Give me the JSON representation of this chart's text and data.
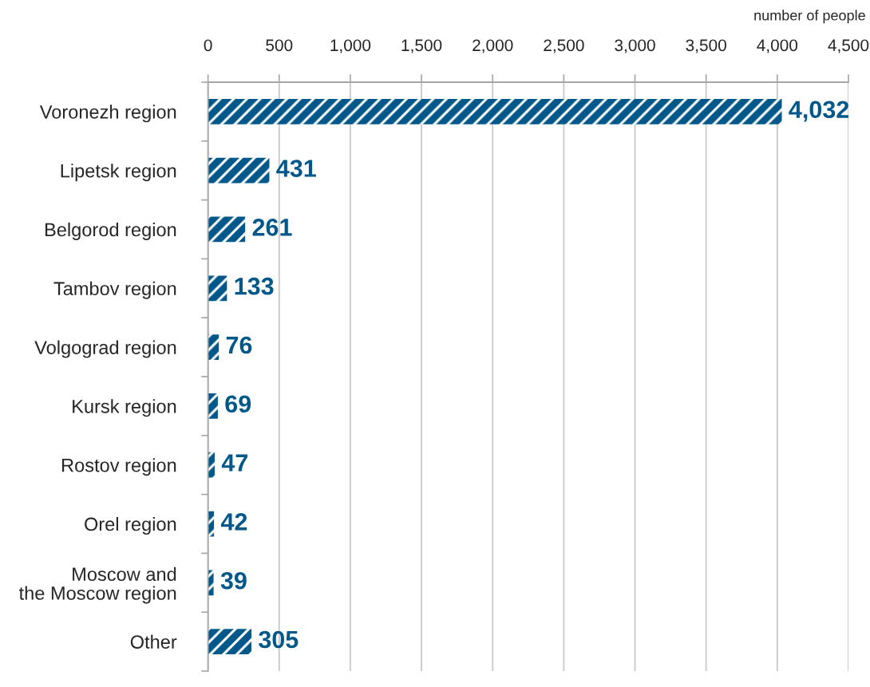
{
  "chart_data": {
    "type": "bar",
    "orientation": "horizontal",
    "categories": [
      "Voronezh region",
      "Lipetsk region",
      "Belgorod region",
      "Tambov region",
      "Volgograd region",
      "Kursk region",
      "Rostov region",
      "Orel region",
      "Moscow and\nthe Moscow region",
      "Other"
    ],
    "values": [
      4032,
      431,
      261,
      133,
      76,
      69,
      47,
      42,
      39,
      305
    ],
    "color": "#00578a",
    "value_labels": [
      "4,032",
      "431",
      "261",
      "133",
      "76",
      "69",
      "47",
      "42",
      "39",
      "305"
    ],
    "xlabel": "number of people",
    "xlim": [
      0,
      4500
    ],
    "xticks": [
      0,
      500,
      {
        "value": 1000,
        "label": "1,000"
      },
      {
        "value": 1500,
        "label": "1,500"
      },
      {
        "value": 2000,
        "label": "2,000"
      },
      {
        "value": 2500,
        "label": "2,500"
      },
      {
        "value": 3000,
        "label": "3,000"
      },
      {
        "value": 3500,
        "label": "3,500"
      },
      {
        "value": 4000,
        "label": "4,000"
      },
      {
        "value": 4500,
        "label": "4,500"
      }
    ],
    "grid": "x"
  }
}
